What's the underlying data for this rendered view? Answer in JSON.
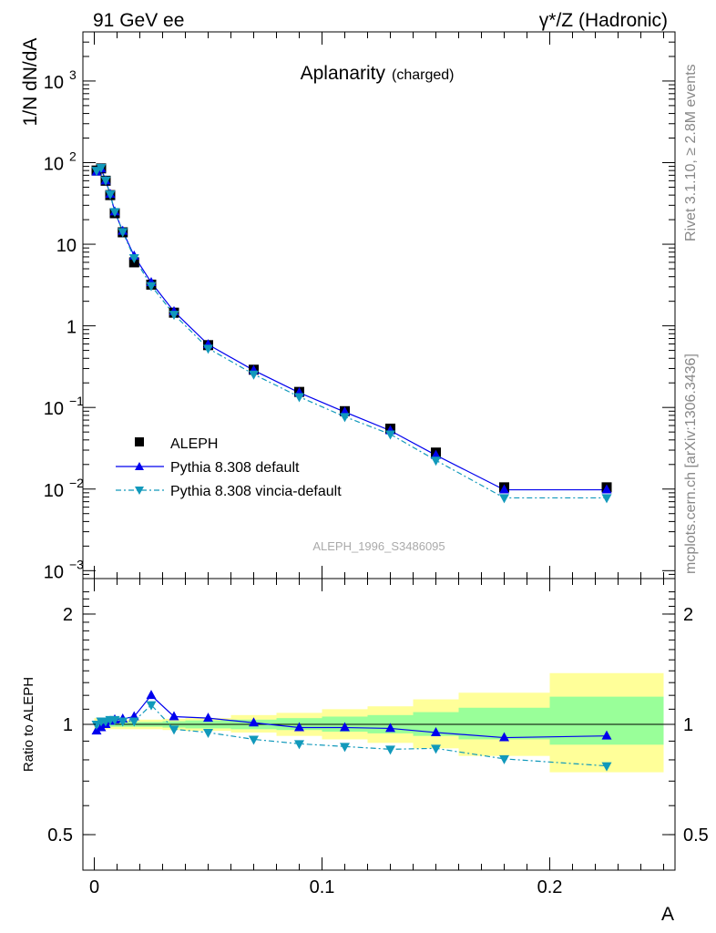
{
  "header": {
    "left_label": "91 GeV ee",
    "right_label": "γ*/Z (Hadronic)"
  },
  "side_labels": {
    "rivet": "Rivet 3.1.10, ≥ 2.8M events",
    "mcplots": "mcplots.cern.ch [arXiv:1306.3436]"
  },
  "chart_data": [
    {
      "type": "line",
      "title": "Aplanarity",
      "subtitle": "(charged)",
      "ylabel": "1/N dN/dA",
      "xlabel": "",
      "yscale": "log",
      "ylim": [
        0.0008,
        4000
      ],
      "xlim": [
        -0.005,
        0.255
      ],
      "yticks": [
        {
          "v": 0.001,
          "base": "10",
          "exp": "−3"
        },
        {
          "v": 0.01,
          "base": "10",
          "exp": "−2"
        },
        {
          "v": 0.1,
          "base": "10",
          "exp": "−1"
        },
        {
          "v": 1,
          "base": "1",
          "exp": ""
        },
        {
          "v": 10,
          "base": "10",
          "exp": ""
        },
        {
          "v": 100,
          "base": "10",
          "exp": "2"
        },
        {
          "v": 1000,
          "base": "10",
          "exp": "3"
        }
      ],
      "watermark": "ALEPH_1996_S3486095",
      "legend_position": "bottom-left",
      "series": [
        {
          "name": "ALEPH",
          "style": "square",
          "color": "#000000",
          "x": [
            0.001,
            0.003,
            0.005,
            0.007,
            0.009,
            0.0125,
            0.0175,
            0.025,
            0.035,
            0.05,
            0.07,
            0.09,
            0.11,
            0.13,
            0.15,
            0.18,
            0.225
          ],
          "y": [
            80,
            85,
            60,
            40,
            24,
            14,
            6.0,
            3.2,
            1.45,
            0.58,
            0.29,
            0.155,
            0.09,
            0.055,
            0.028,
            0.0105,
            0.0105
          ]
        },
        {
          "name": "Pythia 8.308 default",
          "style": "triangle-up",
          "color": "#0000ee",
          "x": [
            0.001,
            0.003,
            0.005,
            0.007,
            0.009,
            0.0125,
            0.0175,
            0.025,
            0.035,
            0.05,
            0.07,
            0.09,
            0.11,
            0.13,
            0.15,
            0.18,
            0.225
          ],
          "y": [
            77,
            84,
            60,
            41,
            25,
            14.5,
            7.2,
            3.4,
            1.5,
            0.59,
            0.285,
            0.152,
            0.088,
            0.052,
            0.026,
            0.0098,
            0.0098
          ]
        },
        {
          "name": "Pythia 8.308 vincia-default",
          "style": "triangle-down",
          "color": "#1199bb",
          "x": [
            0.001,
            0.003,
            0.005,
            0.007,
            0.009,
            0.0125,
            0.0175,
            0.025,
            0.035,
            0.05,
            0.07,
            0.09,
            0.11,
            0.13,
            0.15,
            0.18,
            0.225
          ],
          "y": [
            80,
            87,
            61,
            41,
            25,
            14.2,
            6.8,
            3.1,
            1.38,
            0.53,
            0.255,
            0.135,
            0.077,
            0.047,
            0.0225,
            0.0078,
            0.0078
          ]
        }
      ]
    },
    {
      "type": "line",
      "title": "",
      "ylabel": "Ratio to ALEPH",
      "xlabel": "A",
      "yscale": "log",
      "ylim": [
        0.4,
        2.5
      ],
      "xlim": [
        -0.005,
        0.255
      ],
      "yticks": [
        0.5,
        1,
        2
      ],
      "ytick_labels": [
        "0.5",
        "1",
        "2"
      ],
      "xticks": [
        0,
        0.1,
        0.2
      ],
      "xtick_labels": [
        "0",
        "0.1",
        "0.2"
      ],
      "bands": {
        "bin_edges": [
          0,
          0.002,
          0.004,
          0.006,
          0.008,
          0.01,
          0.015,
          0.02,
          0.03,
          0.04,
          0.06,
          0.08,
          0.1,
          0.12,
          0.14,
          0.16,
          0.2,
          0.25
        ],
        "inner": {
          "color": "#99ff99",
          "lo": [
            0.985,
            0.985,
            0.985,
            0.985,
            0.985,
            0.985,
            0.985,
            0.985,
            0.98,
            0.975,
            0.97,
            0.965,
            0.955,
            0.945,
            0.93,
            0.91,
            0.88
          ],
          "hi": [
            1.015,
            1.015,
            1.015,
            1.015,
            1.015,
            1.015,
            1.015,
            1.015,
            1.02,
            1.025,
            1.03,
            1.04,
            1.05,
            1.06,
            1.08,
            1.11,
            1.19
          ]
        },
        "outer": {
          "color": "#ffff99",
          "lo": [
            0.96,
            0.965,
            0.97,
            0.97,
            0.97,
            0.97,
            0.97,
            0.97,
            0.965,
            0.96,
            0.95,
            0.93,
            0.91,
            0.89,
            0.86,
            0.82,
            0.74
          ],
          "hi": [
            1.04,
            1.035,
            1.03,
            1.03,
            1.03,
            1.03,
            1.03,
            1.03,
            1.035,
            1.04,
            1.06,
            1.075,
            1.1,
            1.12,
            1.17,
            1.22,
            1.38
          ]
        }
      },
      "reference_line": 1,
      "series": [
        {
          "name": "Pythia 8.308 default",
          "style": "triangle-up",
          "color": "#0000ee",
          "x": [
            0.001,
            0.003,
            0.005,
            0.007,
            0.009,
            0.0125,
            0.0175,
            0.025,
            0.035,
            0.05,
            0.07,
            0.09,
            0.11,
            0.13,
            0.15,
            0.18,
            0.225
          ],
          "y": [
            0.96,
            0.98,
            1.0,
            1.02,
            1.03,
            1.035,
            1.05,
            1.2,
            1.05,
            1.04,
            1.01,
            0.98,
            0.98,
            0.975,
            0.95,
            0.92,
            0.93
          ]
        },
        {
          "name": "Pythia 8.308 vincia-default",
          "style": "triangle-down",
          "color": "#1199bb",
          "x": [
            0.001,
            0.003,
            0.005,
            0.007,
            0.009,
            0.0125,
            0.0175,
            0.025,
            0.035,
            0.05,
            0.07,
            0.09,
            0.11,
            0.13,
            0.15,
            0.18,
            0.225
          ],
          "y": [
            1.0,
            1.02,
            1.02,
            1.03,
            1.03,
            1.02,
            1.02,
            1.13,
            0.97,
            0.95,
            0.91,
            0.885,
            0.87,
            0.855,
            0.86,
            0.805,
            0.77
          ]
        }
      ]
    }
  ]
}
